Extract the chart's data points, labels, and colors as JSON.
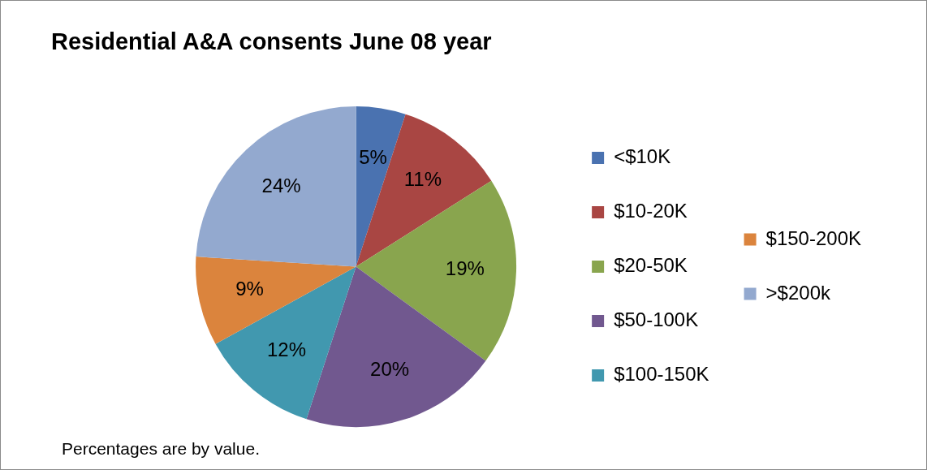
{
  "chart_data": {
    "type": "pie",
    "title": "Residential A&A consents June 08 year",
    "categories": [
      "<$10K",
      "$10-20K",
      "$20-50K",
      "$50-100K",
      "$100-150K",
      "$150-200K",
      ">$200k"
    ],
    "values": [
      5,
      11,
      19,
      20,
      12,
      9,
      24
    ],
    "value_labels": [
      "5%",
      "11%",
      "19%",
      "20%",
      "12%",
      "9%",
      "24%"
    ],
    "colors": [
      "#4a72b0",
      "#a94643",
      "#89a54e",
      "#71588f",
      "#4198af",
      "#db843d",
      "#93a9cf"
    ],
    "legend": "right",
    "annotations": [
      "Percentages are by value."
    ]
  }
}
